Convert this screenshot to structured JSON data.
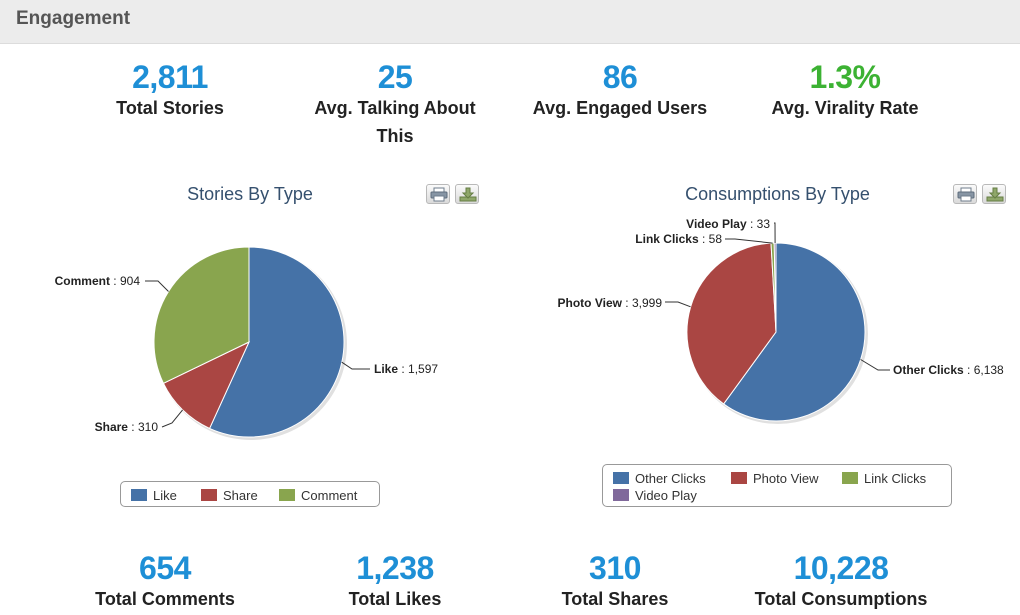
{
  "header": {
    "title": "Engagement"
  },
  "top_stats": [
    {
      "value": "2,811",
      "label": "Total Stories"
    },
    {
      "value": "25",
      "label": "Avg. Talking About This"
    },
    {
      "value": "86",
      "label": "Avg. Engaged Users"
    },
    {
      "value": "1.3%",
      "label": "Avg. Virality Rate"
    }
  ],
  "bottom_stats": [
    {
      "value": "654",
      "label": "Total Comments"
    },
    {
      "value": "1,238",
      "label": "Total Likes"
    },
    {
      "value": "310",
      "label": "Total Shares"
    },
    {
      "value": "10,228",
      "label": "Total Consumptions"
    }
  ],
  "colors": {
    "blue": "#4572a7",
    "red": "#aa4643",
    "green": "#89a54e",
    "purple": "#80699b",
    "stat_blue": "#1e8fd6",
    "stat_green": "#3cb233"
  },
  "icons": [
    "print-icon",
    "download-icon"
  ],
  "chart_data": [
    {
      "type": "pie",
      "title": "Stories By Type",
      "legend_position": "bottom",
      "slices": [
        {
          "label": "Like",
          "value": 1597,
          "value_text": "1,597",
          "color": "#4572a7"
        },
        {
          "label": "Share",
          "value": 310,
          "value_text": "310",
          "color": "#aa4643"
        },
        {
          "label": "Comment",
          "value": 904,
          "value_text": "904",
          "color": "#89a54e"
        }
      ]
    },
    {
      "type": "pie",
      "title": "Consumptions By Type",
      "legend_position": "bottom",
      "slices": [
        {
          "label": "Other Clicks",
          "value": 6138,
          "value_text": "6,138",
          "color": "#4572a7"
        },
        {
          "label": "Photo View",
          "value": 3999,
          "value_text": "3,999",
          "color": "#aa4643"
        },
        {
          "label": "Link Clicks",
          "value": 58,
          "value_text": "58",
          "color": "#89a54e"
        },
        {
          "label": "Video Play",
          "value": 33,
          "value_text": "33",
          "color": "#80699b"
        }
      ]
    }
  ]
}
